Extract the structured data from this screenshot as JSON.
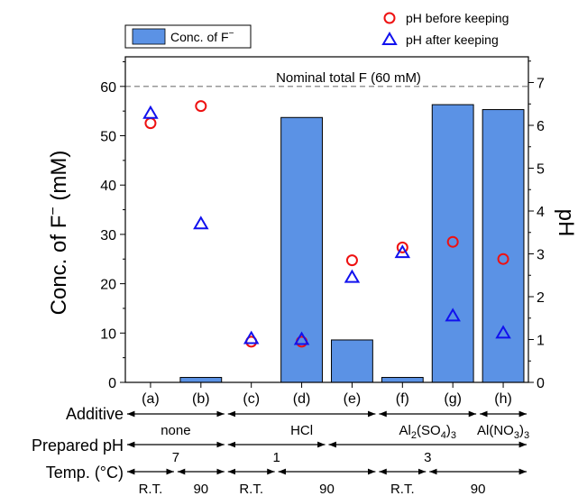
{
  "chart_data": {
    "type": "bar",
    "categories": [
      "(a)",
      "(b)",
      "(c)",
      "(d)",
      "(e)",
      "(f)",
      "(g)",
      "(h)"
    ],
    "ylabel_left": {
      "main": "Conc. of F",
      "sup": "−",
      "unit": " (mM)"
    },
    "ylabel_right": "pH",
    "ylim_left": [
      0,
      66
    ],
    "ylim_right": [
      0,
      7.6
    ],
    "yticks_left": [
      0,
      10,
      20,
      30,
      40,
      50,
      60
    ],
    "yticks_right": [
      0,
      1,
      2,
      3,
      4,
      5,
      6,
      7
    ],
    "grid": false,
    "legend_position": "top",
    "series": [
      {
        "name": "Conc. of F−",
        "kind": "bar",
        "axis": "left",
        "color": "#5b92e5",
        "values": [
          0,
          1.0,
          0,
          53.7,
          8.6,
          1.0,
          56.3,
          55.3
        ]
      },
      {
        "name": "pH before keeping",
        "kind": "scatter",
        "marker": "circle",
        "axis": "right",
        "color": "#ee1111",
        "values": [
          6.05,
          6.45,
          0.95,
          0.95,
          2.85,
          3.15,
          3.28,
          2.88
        ]
      },
      {
        "name": "pH after keeping",
        "kind": "scatter",
        "marker": "triangle",
        "axis": "right",
        "color": "#1111ee",
        "values": [
          6.28,
          3.7,
          1.02,
          1.0,
          2.45,
          3.03,
          1.55,
          1.15
        ]
      }
    ],
    "legend": {
      "bar_label": "Conc. of F",
      "bar_label_sup": "−",
      "before_label": "pH before keeping",
      "after_label": "pH after keeping"
    },
    "reference_line": {
      "value": 60,
      "axis": "left",
      "label": "Nominal total F (60 mM)"
    },
    "condition_rows": [
      {
        "label": "Additive",
        "groups": [
          {
            "from": 0,
            "to": 1,
            "text": "none"
          },
          {
            "from": 2,
            "to": 4,
            "text": "HCl"
          },
          {
            "from": 5,
            "to": 6,
            "text": "Al",
            "sub1": "2",
            "mid": "(SO",
            "sub2": "4",
            "end": ")",
            "sub3": "3"
          },
          {
            "from": 7,
            "to": 7,
            "text": "Al(NO",
            "sub2": "3",
            "end": ")",
            "sub3": "3"
          }
        ]
      },
      {
        "label": "Prepared pH",
        "groups": [
          {
            "from": 0,
            "to": 1,
            "text": "7"
          },
          {
            "from": 2,
            "to": 3,
            "text": "1"
          },
          {
            "from": 4,
            "to": 7,
            "text": "3"
          }
        ]
      },
      {
        "label": "Temp. (°C)",
        "groups": [
          {
            "from": 0,
            "to": 0,
            "text": "R.T."
          },
          {
            "from": 1,
            "to": 1,
            "text": "90"
          },
          {
            "from": 2,
            "to": 2,
            "text": "R.T."
          },
          {
            "from": 3,
            "to": 4,
            "text": "90"
          },
          {
            "from": 5,
            "to": 5,
            "text": "R.T."
          },
          {
            "from": 6,
            "to": 7,
            "text": "90"
          }
        ]
      }
    ]
  }
}
